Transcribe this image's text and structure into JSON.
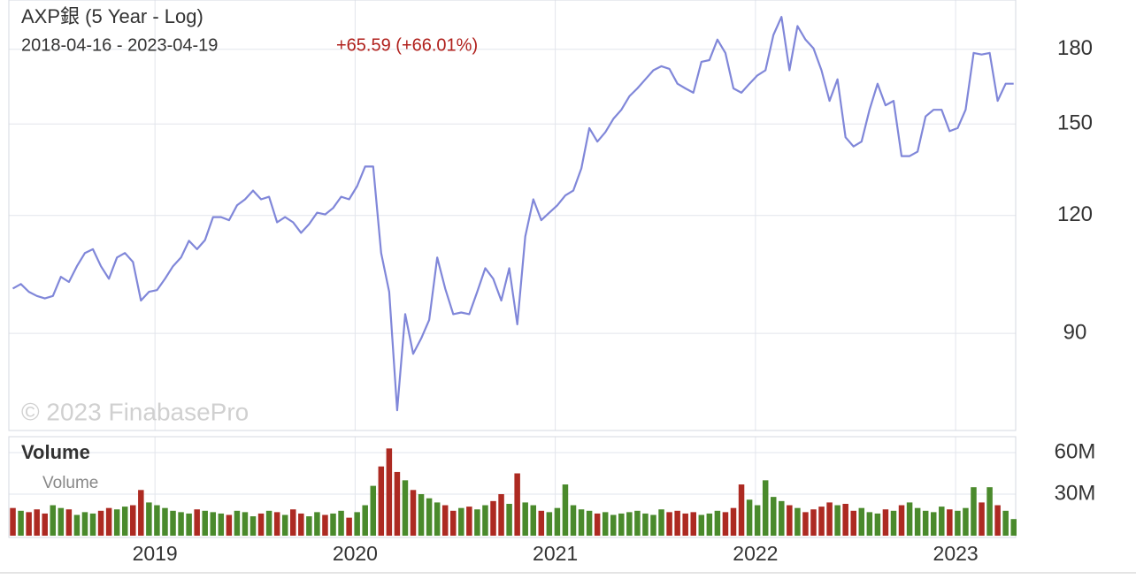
{
  "chart_data": [
    {
      "type": "line",
      "title": "AXP銀 (5 Year - Log)",
      "subtitle": "2018-04-16 - 2023-04-19",
      "annotations": [
        "+65.59 (+66.01%)",
        "© 2023 FinabasePro"
      ],
      "log_scale": true,
      "grid": true,
      "color": "#8087d9",
      "x": [
        2018.29,
        2018.33,
        2018.37,
        2018.41,
        2018.45,
        2018.49,
        2018.53,
        2018.57,
        2018.61,
        2018.65,
        2018.69,
        2018.73,
        2018.77,
        2018.81,
        2018.85,
        2018.89,
        2018.93,
        2018.97,
        2019.01,
        2019.05,
        2019.09,
        2019.13,
        2019.17,
        2019.21,
        2019.25,
        2019.29,
        2019.33,
        2019.37,
        2019.41,
        2019.45,
        2019.49,
        2019.53,
        2019.57,
        2019.61,
        2019.65,
        2019.69,
        2019.73,
        2019.77,
        2019.81,
        2019.85,
        2019.89,
        2019.93,
        2019.97,
        2020.01,
        2020.05,
        2020.09,
        2020.13,
        2020.17,
        2020.21,
        2020.25,
        2020.29,
        2020.33,
        2020.37,
        2020.41,
        2020.45,
        2020.49,
        2020.53,
        2020.57,
        2020.61,
        2020.65,
        2020.69,
        2020.73,
        2020.77,
        2020.81,
        2020.85,
        2020.89,
        2020.93,
        2020.97,
        2021.01,
        2021.05,
        2021.09,
        2021.13,
        2021.17,
        2021.21,
        2021.25,
        2021.29,
        2021.33,
        2021.37,
        2021.41,
        2021.45,
        2021.49,
        2021.53,
        2021.57,
        2021.61,
        2021.65,
        2021.69,
        2021.73,
        2021.77,
        2021.81,
        2021.85,
        2021.89,
        2021.93,
        2021.97,
        2022.01,
        2022.05,
        2022.09,
        2022.13,
        2022.17,
        2022.21,
        2022.25,
        2022.29,
        2022.33,
        2022.37,
        2022.41,
        2022.45,
        2022.49,
        2022.53,
        2022.57,
        2022.61,
        2022.65,
        2022.69,
        2022.73,
        2022.77,
        2022.81,
        2022.85,
        2022.89,
        2022.93,
        2022.97,
        2023.01,
        2023.05,
        2023.09,
        2023.13,
        2023.17,
        2023.21,
        2023.25,
        2023.29
      ],
      "values": [
        100.4,
        101.5,
        99.6,
        98.6,
        98,
        98.6,
        103.3,
        102,
        106,
        109.5,
        110.5,
        106,
        102.8,
        108.3,
        109.5,
        107.1,
        97.5,
        99.6,
        100,
        102.8,
        106,
        108.3,
        112.8,
        110.5,
        113,
        119.5,
        119.5,
        118.6,
        123,
        124.8,
        127.5,
        124.8,
        125.6,
        118,
        119.5,
        118,
        115,
        117.5,
        120.8,
        120.3,
        122.2,
        125.6,
        124.8,
        128.9,
        135.2,
        135.2,
        109.5,
        99.6,
        74.6,
        94.3,
        85.6,
        88.9,
        93,
        108.3,
        100.4,
        94.3,
        94.7,
        94.3,
        99.6,
        105.5,
        102.8,
        97.5,
        105.5,
        92,
        114,
        124.8,
        118.6,
        120.8,
        123,
        126,
        127.5,
        134.6,
        148.5,
        143.7,
        147,
        151.9,
        155.3,
        160.5,
        163.6,
        167.3,
        171,
        172.7,
        171.6,
        165.5,
        163.6,
        161.9,
        174.6,
        175.3,
        184.3,
        178.4,
        163.6,
        161.9,
        165.5,
        168.9,
        171,
        186.4,
        194.8,
        171,
        190.5,
        184.3,
        180.4,
        171,
        158.7,
        167.3,
        145.2,
        142,
        143.7,
        155.3,
        165.5,
        157,
        158.7,
        138.7,
        138.7,
        140.2,
        152.8,
        155.3,
        155.3,
        147.4,
        148.5,
        155.3,
        178.4,
        177.7,
        178.4,
        158.7,
        165.5,
        165.5
      ],
      "xlim": [
        2018.27,
        2023.3
      ],
      "xticks": [
        2019,
        2020,
        2021,
        2022,
        2023
      ],
      "ylim": [
        71,
        203
      ],
      "yticks": [
        90,
        120,
        150,
        180
      ]
    },
    {
      "type": "bar",
      "title": "Volume",
      "name": "Volume",
      "grid": true,
      "up_color": "#4a8a2c",
      "down_color": "#ad2a22",
      "x": [
        2018.29,
        2018.33,
        2018.37,
        2018.41,
        2018.45,
        2018.49,
        2018.53,
        2018.57,
        2018.61,
        2018.65,
        2018.69,
        2018.73,
        2018.77,
        2018.81,
        2018.85,
        2018.89,
        2018.93,
        2018.97,
        2019.01,
        2019.05,
        2019.09,
        2019.13,
        2019.17,
        2019.21,
        2019.25,
        2019.29,
        2019.33,
        2019.37,
        2019.41,
        2019.45,
        2019.49,
        2019.53,
        2019.57,
        2019.61,
        2019.65,
        2019.69,
        2019.73,
        2019.77,
        2019.81,
        2019.85,
        2019.89,
        2019.93,
        2019.97,
        2020.01,
        2020.05,
        2020.09,
        2020.13,
        2020.17,
        2020.21,
        2020.25,
        2020.29,
        2020.33,
        2020.37,
        2020.41,
        2020.45,
        2020.49,
        2020.53,
        2020.57,
        2020.61,
        2020.65,
        2020.69,
        2020.73,
        2020.77,
        2020.81,
        2020.85,
        2020.89,
        2020.93,
        2020.97,
        2021.01,
        2021.05,
        2021.09,
        2021.13,
        2021.17,
        2021.21,
        2021.25,
        2021.29,
        2021.33,
        2021.37,
        2021.41,
        2021.45,
        2021.49,
        2021.53,
        2021.57,
        2021.61,
        2021.65,
        2021.69,
        2021.73,
        2021.77,
        2021.81,
        2021.85,
        2021.89,
        2021.93,
        2021.97,
        2022.01,
        2022.05,
        2022.09,
        2022.13,
        2022.17,
        2022.21,
        2022.25,
        2022.29,
        2022.33,
        2022.37,
        2022.41,
        2022.45,
        2022.49,
        2022.53,
        2022.57,
        2022.61,
        2022.65,
        2022.69,
        2022.73,
        2022.77,
        2022.81,
        2022.85,
        2022.89,
        2022.93,
        2022.97,
        2023.01,
        2023.05,
        2023.09,
        2023.13,
        2023.17,
        2023.21,
        2023.25,
        2023.29
      ],
      "values": [
        20,
        18,
        17,
        19,
        16,
        22,
        20,
        19,
        15,
        17,
        16,
        18,
        20,
        19,
        21,
        22,
        33,
        24,
        22,
        20,
        18,
        17,
        16,
        19,
        18,
        17,
        16,
        15,
        18,
        17,
        14,
        16,
        18,
        17,
        15,
        19,
        16,
        14,
        17,
        15,
        16,
        18,
        13,
        17,
        22,
        36,
        50,
        63,
        46,
        40,
        33,
        30,
        27,
        24,
        22,
        18,
        20,
        21,
        19,
        22,
        25,
        30,
        23,
        45,
        24,
        22,
        18,
        17,
        20,
        37,
        22,
        19,
        18,
        16,
        17,
        15,
        16,
        17,
        18,
        16,
        15,
        19,
        17,
        18,
        16,
        17,
        15,
        16,
        18,
        17,
        20,
        37,
        26,
        22,
        40,
        28,
        25,
        22,
        20,
        17,
        19,
        21,
        24,
        22,
        23,
        18,
        20,
        17,
        16,
        19,
        18,
        22,
        24,
        20,
        18,
        17,
        21,
        19,
        18,
        20,
        35,
        24,
        35,
        22,
        18,
        12
      ],
      "xlim": [
        2018.27,
        2023.3
      ],
      "xticks": [
        2019,
        2020,
        2021,
        2022,
        2023
      ],
      "ylim": [
        0,
        71.5
      ],
      "yticks": [
        {
          "value": 60,
          "label": "60M"
        },
        {
          "value": 30,
          "label": "30M"
        }
      ]
    }
  ]
}
